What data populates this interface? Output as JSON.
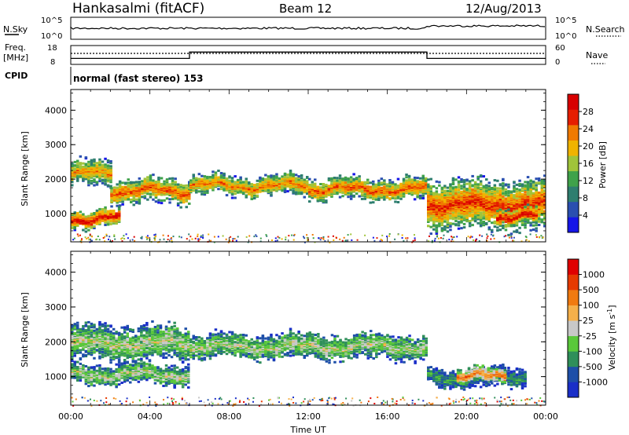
{
  "header": {
    "station": "Hankasalmi (fitACF)",
    "beam": "Beam 12",
    "date": "12/Aug/2013"
  },
  "summary": {
    "nsky_label": "N.Sky",
    "nsky_ticks": [
      "10^5",
      "10^0"
    ],
    "nsearch_label": "N.Search",
    "nsearch_ticks": [
      "10^5",
      "10^0"
    ],
    "freq_label_1": "Freq.",
    "freq_label_2": "[MHz]",
    "freq_ticks": [
      "18",
      "8"
    ],
    "nave_label": "Nave",
    "nave_ticks": [
      "60",
      "0"
    ],
    "cpid_label": "CPID",
    "cpid_text": "normal (fast stereo) 153",
    "freq_profile": [
      [
        0,
        10
      ],
      [
        6.0,
        10
      ],
      [
        6.0,
        14.5
      ],
      [
        18.0,
        14.5
      ],
      [
        18.0,
        10
      ],
      [
        24,
        10
      ]
    ]
  },
  "chart_data": [
    {
      "type": "heatmap",
      "title": "",
      "xlabel": "",
      "ylabel": "Slant Range [km]",
      "xlim": [
        0,
        24
      ],
      "ylim": [
        180,
        4600
      ],
      "yticks": [
        "1000",
        "2000",
        "3000",
        "4000"
      ],
      "colorbar": {
        "label": "Power [dB]",
        "ticks": [
          "4",
          "8",
          "12",
          "16",
          "20",
          "24",
          "28"
        ],
        "colors": [
          "#1515e8",
          "#2a4fb0",
          "#2e7e6f",
          "#3fa24a",
          "#a0c43a",
          "#f0b300",
          "#f07a00",
          "#e61e00",
          "#d80000"
        ]
      },
      "bands": [
        {
          "t0": 0.0,
          "t1": 2.0,
          "range": 2200,
          "width": 260,
          "level": 0.7
        },
        {
          "t0": 2.0,
          "t1": 6.0,
          "range": 1700,
          "width": 240,
          "level": 0.8
        },
        {
          "t0": 6.0,
          "t1": 12.0,
          "range": 1850,
          "width": 200,
          "level": 0.75
        },
        {
          "t0": 12.0,
          "t1": 18.0,
          "range": 1750,
          "width": 220,
          "level": 0.8
        },
        {
          "t0": 0.0,
          "t1": 2.5,
          "range": 900,
          "width": 180,
          "level": 0.95
        },
        {
          "t0": 18.0,
          "t1": 24.0,
          "range": 1300,
          "width": 500,
          "level": 0.85
        },
        {
          "t0": 21.5,
          "t1": 23.5,
          "range": 950,
          "width": 180,
          "level": 0.95
        }
      ]
    },
    {
      "type": "heatmap",
      "title": "",
      "xlabel": "Time UT",
      "ylabel": "Slant Range [km]",
      "xlim": [
        0,
        24
      ],
      "ylim": [
        180,
        4600
      ],
      "xticks": [
        "00:00",
        "04:00",
        "08:00",
        "12:00",
        "16:00",
        "20:00",
        "00:00"
      ],
      "yticks": [
        "1000",
        "2000",
        "3000",
        "4000"
      ],
      "colorbar": {
        "label": "Velocity [m s^-1]",
        "ticks": [
          "1000",
          "500",
          "100",
          "25",
          "-25",
          "-100",
          "-500",
          "-1000"
        ],
        "colors": [
          "#1a2fc8",
          "#1e4fa8",
          "#2f8f5a",
          "#5ac83a",
          "#c8c8c8",
          "#f5b04a",
          "#f07a10",
          "#e63a00",
          "#e00000"
        ]
      },
      "bands": [
        {
          "t0": 0.0,
          "t1": 6.0,
          "range": 2000,
          "width": 350,
          "level": 0.5
        },
        {
          "t0": 6.0,
          "t1": 18.0,
          "range": 1900,
          "width": 250,
          "level": 0.5
        },
        {
          "t0": 0.0,
          "t1": 6.0,
          "range": 1100,
          "width": 200,
          "level": 0.5
        },
        {
          "t0": 18.0,
          "t1": 23.0,
          "range": 1000,
          "width": 200,
          "level": 0.3
        },
        {
          "t0": 19.5,
          "t1": 22.0,
          "range": 1050,
          "width": 170,
          "level": 0.75
        }
      ]
    }
  ]
}
